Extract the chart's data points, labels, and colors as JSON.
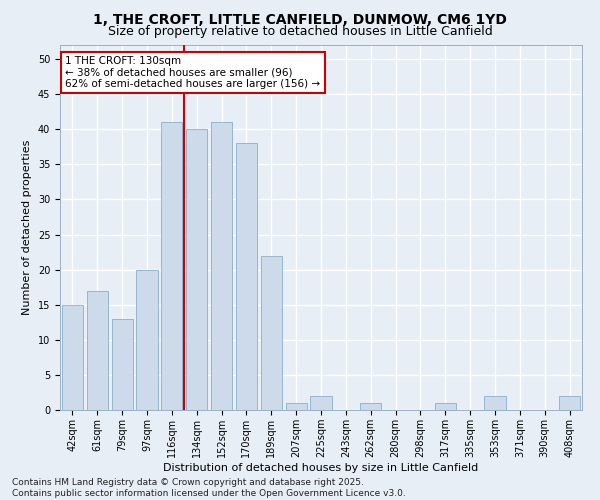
{
  "title": "1, THE CROFT, LITTLE CANFIELD, DUNMOW, CM6 1YD",
  "subtitle": "Size of property relative to detached houses in Little Canfield",
  "xlabel": "Distribution of detached houses by size in Little Canfield",
  "ylabel": "Number of detached properties",
  "categories": [
    "42sqm",
    "61sqm",
    "79sqm",
    "97sqm",
    "116sqm",
    "134sqm",
    "152sqm",
    "170sqm",
    "189sqm",
    "207sqm",
    "225sqm",
    "243sqm",
    "262sqm",
    "280sqm",
    "298sqm",
    "317sqm",
    "335sqm",
    "353sqm",
    "371sqm",
    "390sqm",
    "408sqm"
  ],
  "values": [
    15,
    17,
    13,
    20,
    41,
    40,
    41,
    38,
    22,
    1,
    2,
    0,
    1,
    0,
    0,
    1,
    0,
    2,
    0,
    0,
    2
  ],
  "bar_color": "#ccdaea",
  "bar_edgecolor": "#8aafc8",
  "background_color": "#e8eef5",
  "grid_color": "#ffffff",
  "vline_x": 4.5,
  "vline_color": "#cc0000",
  "annotation_text": "1 THE CROFT: 130sqm\n← 38% of detached houses are smaller (96)\n62% of semi-detached houses are larger (156) →",
  "annotation_box_facecolor": "#ffffff",
  "annotation_box_edgecolor": "#cc0000",
  "footer_line1": "Contains HM Land Registry data © Crown copyright and database right 2025.",
  "footer_line2": "Contains public sector information licensed under the Open Government Licence v3.0.",
  "ylim": [
    0,
    52
  ],
  "yticks": [
    0,
    5,
    10,
    15,
    20,
    25,
    30,
    35,
    40,
    45,
    50
  ],
  "title_fontsize": 10,
  "subtitle_fontsize": 9,
  "axis_label_fontsize": 8,
  "tick_fontsize": 7,
  "annotation_fontsize": 7.5,
  "footer_fontsize": 6.5,
  "fig_width": 6.0,
  "fig_height": 5.0,
  "fig_dpi": 100
}
